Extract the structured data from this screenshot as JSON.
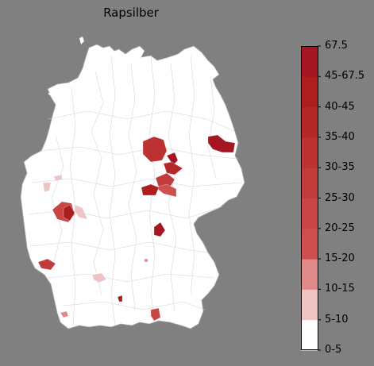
{
  "title": "Rapsilber",
  "legend": {
    "ticks": [
      "0-5",
      "5-10",
      "10-15",
      "15-20",
      "20-25",
      "25-30",
      "30-35",
      "35-40",
      "40-45",
      "45-67.5",
      "67.5"
    ],
    "bins": [
      {
        "label": "0-5",
        "color": "#ffffff"
      },
      {
        "label": "5-10",
        "color": "#efc4c4"
      },
      {
        "label": "10-15",
        "color": "#de8a8a"
      },
      {
        "label": "15-20",
        "color": "#cd4f4f"
      },
      {
        "label": "20-25",
        "color": "#c84646"
      },
      {
        "label": "25-30",
        "color": "#c23b3b"
      },
      {
        "label": "30-35",
        "color": "#bc3131"
      },
      {
        "label": "35-40",
        "color": "#b52828"
      },
      {
        "label": "40-45",
        "color": "#ad1e1e"
      },
      {
        "label": "45-67.5",
        "color": "#a41624"
      },
      {
        "label": "67.5",
        "color": "#9b0f21"
      }
    ]
  },
  "colors": {
    "background": "#808080",
    "land": "#ffffff",
    "border": "#cfcfcf"
  },
  "regions": [
    {
      "name": "region-north-center",
      "bin": "30-35"
    },
    {
      "name": "region-brandenburg-east",
      "bin": "45-67.5"
    },
    {
      "name": "region-saxony-anhalt-north",
      "bin": "45-67.5"
    },
    {
      "name": "region-saxony-anhalt-center",
      "bin": "35-40"
    },
    {
      "name": "region-harz",
      "bin": "25-30"
    },
    {
      "name": "region-thuringia",
      "bin": "15-20"
    },
    {
      "name": "region-thuringia-west",
      "bin": "40-45"
    },
    {
      "name": "region-franconia",
      "bin": "45-67.5"
    },
    {
      "name": "region-hesse-center",
      "bin": "20-25"
    },
    {
      "name": "region-hesse-center-dark",
      "bin": "40-45"
    },
    {
      "name": "region-hesse-east",
      "bin": "5-10"
    },
    {
      "name": "region-rhineland-west",
      "bin": "5-10"
    },
    {
      "name": "region-rhineland-north",
      "bin": "5-10"
    },
    {
      "name": "region-saarland",
      "bin": "25-30"
    },
    {
      "name": "region-baden-north",
      "bin": "5-10"
    },
    {
      "name": "region-swabia-small",
      "bin": "40-45"
    },
    {
      "name": "region-bavaria-south",
      "bin": "20-25"
    },
    {
      "name": "region-baden-south",
      "bin": "10-15"
    },
    {
      "name": "region-saxony-small",
      "bin": "10-15"
    }
  ]
}
